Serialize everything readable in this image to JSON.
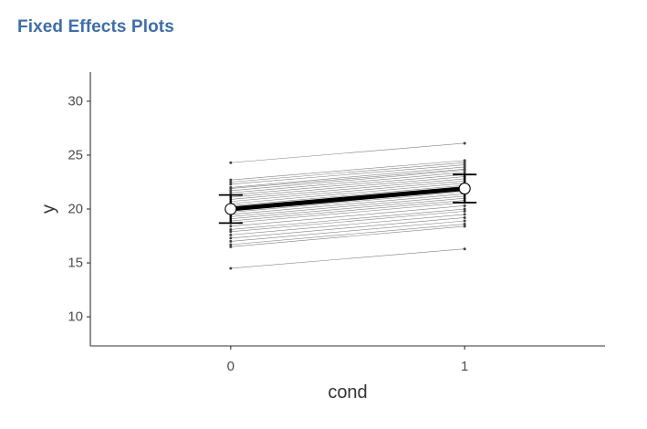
{
  "panel": {
    "heading": "Fixed Effects Plots"
  },
  "chart_data": {
    "type": "line",
    "title": "",
    "xlabel": "cond",
    "ylabel": "y",
    "categories": [
      "0",
      "1"
    ],
    "x_tick_labels": [
      "0",
      "1"
    ],
    "y_tick_labels": [
      "10",
      "15",
      "20",
      "25",
      "30"
    ],
    "xlim": [
      -0.6,
      1.6
    ],
    "ylim": [
      7.3,
      32.7
    ],
    "y_ticks": [
      10,
      15,
      20,
      25,
      30
    ],
    "grid": false,
    "legend": "none",
    "fixed_effect": {
      "name": "fixed effect",
      "values": [
        20.0,
        21.9
      ],
      "ci_lower": [
        18.7,
        20.6
      ],
      "ci_upper": [
        21.3,
        23.2
      ],
      "color": "#000000"
    },
    "random_effect_color": "#555555",
    "random_effects": [
      [
        24.3,
        26.1
      ],
      [
        22.7,
        24.5
      ],
      [
        22.5,
        24.3
      ],
      [
        22.3,
        24.1
      ],
      [
        22.0,
        23.9
      ],
      [
        21.9,
        23.7
      ],
      [
        21.7,
        23.6
      ],
      [
        21.5,
        23.4
      ],
      [
        21.3,
        23.2
      ],
      [
        21.1,
        23.0
      ],
      [
        20.9,
        22.8
      ],
      [
        20.7,
        22.6
      ],
      [
        20.5,
        22.4
      ],
      [
        20.3,
        22.2
      ],
      [
        20.1,
        22.0
      ],
      [
        19.9,
        21.8
      ],
      [
        19.7,
        21.6
      ],
      [
        19.5,
        21.4
      ],
      [
        19.3,
        21.2
      ],
      [
        19.1,
        21.0
      ],
      [
        18.9,
        20.8
      ],
      [
        18.7,
        20.6
      ],
      [
        18.4,
        20.3
      ],
      [
        18.1,
        20.0
      ],
      [
        17.9,
        19.8
      ],
      [
        17.6,
        19.5
      ],
      [
        17.3,
        19.2
      ],
      [
        17.0,
        18.9
      ],
      [
        16.7,
        18.6
      ],
      [
        16.5,
        18.4
      ],
      [
        14.5,
        16.3
      ]
    ]
  }
}
